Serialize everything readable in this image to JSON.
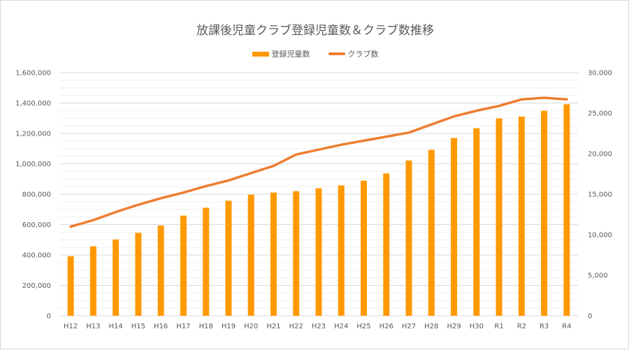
{
  "chart_data": {
    "type": "bar",
    "title": "放課後児童クラブ登録児童数＆クラブ数推移",
    "categories": [
      "H12",
      "H13",
      "H14",
      "H15",
      "H16",
      "H17",
      "H18",
      "H19",
      "H20",
      "H21",
      "H22",
      "H23",
      "H24",
      "H25",
      "H26",
      "H27",
      "H28",
      "H29",
      "H30",
      "R1",
      "R2",
      "R3",
      "R4"
    ],
    "series": [
      {
        "name": "登録児童数",
        "type": "bar",
        "axis": "left",
        "color": "#FF9900",
        "values": [
          392000,
          457000,
          502000,
          546000,
          594000,
          659000,
          711000,
          757000,
          797000,
          811000,
          820000,
          839000,
          858000,
          889000,
          937000,
          1022000,
          1092000,
          1170000,
          1234000,
          1299000,
          1311000,
          1349000,
          1392000
        ]
      },
      {
        "name": "クラブ数",
        "type": "line",
        "axis": "right",
        "color": "#ED7D31",
        "values": [
          11000,
          11800,
          12800,
          13700,
          14500,
          15200,
          16000,
          16700,
          17600,
          18500,
          19900,
          20500,
          21100,
          21600,
          22100,
          22600,
          23600,
          24600,
          25300,
          25900,
          26700,
          26900,
          26700
        ]
      }
    ],
    "y_left": {
      "min": 0,
      "max": 1600000,
      "step": 200000,
      "tick_labels": [
        "0",
        "200,000",
        "400,000",
        "600,000",
        "800,000",
        "1,000,000",
        "1,200,000",
        "1,400,000",
        "1,600,000"
      ]
    },
    "y_right": {
      "min": 0,
      "max": 30000,
      "step": 5000,
      "tick_labels": [
        "0",
        "5,000",
        "10,000",
        "15,000",
        "20,000",
        "25,000",
        "30,000"
      ]
    },
    "grid": true,
    "legend_position": "top"
  }
}
